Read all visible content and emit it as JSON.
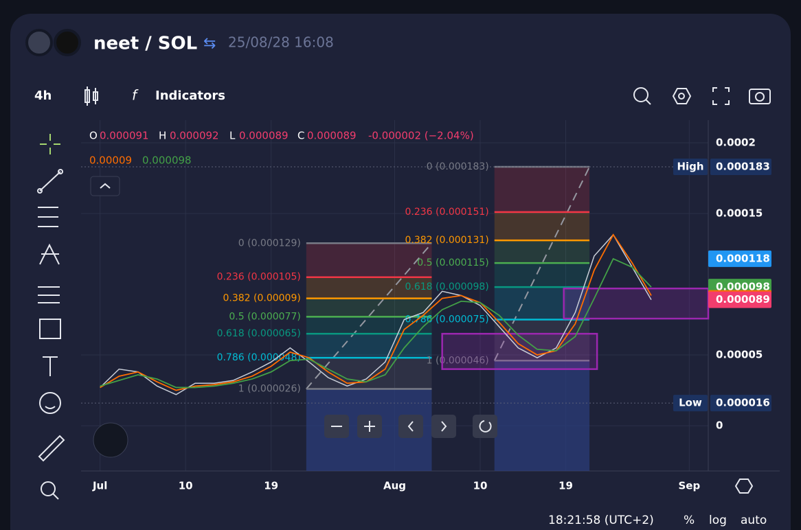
{
  "header": {
    "pair": "neet / SOL",
    "timestamp": "25/08/28 16:08",
    "interval": "4h",
    "indicators": "Indicators"
  },
  "ohlc": {
    "o_label": "O",
    "o": "0.000091",
    "h_label": "H",
    "h": "0.000092",
    "l_label": "L",
    "l": "0.000089",
    "c_label": "C",
    "c": "0.000089",
    "change": "-0.000002 (−2.04%)",
    "ma1": "0.00009",
    "ma2": "0.000098"
  },
  "footer": {
    "time": "18:21:58 (UTC+2)",
    "percent": "%",
    "log": "log",
    "auto": "auto"
  },
  "chart_data": {
    "type": "line",
    "x": [
      0,
      2,
      4,
      6,
      8,
      10,
      12,
      14,
      16,
      18,
      20,
      22,
      24,
      26,
      28,
      30,
      32,
      34,
      36,
      38,
      40,
      42,
      44,
      46,
      48,
      50,
      52,
      54,
      56,
      58
    ],
    "series": [
      {
        "color": "#c9ced8",
        "values": [
          2.7e-05,
          4e-05,
          3.8e-05,
          2.8e-05,
          2.2e-05,
          3e-05,
          3e-05,
          3.2e-05,
          3.8e-05,
          4.5e-05,
          5.5e-05,
          4.5e-05,
          3.4e-05,
          2.8e-05,
          3.3e-05,
          4.5e-05,
          7.5e-05,
          8e-05,
          9.5e-05,
          9.2e-05,
          8.5e-05,
          7e-05,
          5.5e-05,
          4.8e-05,
          5.5e-05,
          8e-05,
          0.00012,
          0.000135,
          0.000112,
          8.9e-05
        ]
      },
      {
        "color": "#ff6d00",
        "values": [
          2.7e-05,
          3.5e-05,
          3.8e-05,
          3.1e-05,
          2.5e-05,
          2.8e-05,
          2.9e-05,
          3.1e-05,
          3.5e-05,
          4.2e-05,
          5.2e-05,
          4.8e-05,
          3.8e-05,
          3e-05,
          3.1e-05,
          4e-05,
          6.8e-05,
          7.8e-05,
          9e-05,
          9.2e-05,
          8.7e-05,
          7.3e-05,
          5.8e-05,
          5e-05,
          5.3e-05,
          7.2e-05,
          0.00011,
          0.000135,
          0.000115,
          9.2e-05
        ]
      },
      {
        "color": "#43a047",
        "values": [
          2.8e-05,
          3.2e-05,
          3.6e-05,
          3.3e-05,
          2.7e-05,
          2.7e-05,
          2.8e-05,
          3e-05,
          3.3e-05,
          3.8e-05,
          4.6e-05,
          4.7e-05,
          4e-05,
          3.3e-05,
          3.1e-05,
          3.6e-05,
          5.5e-05,
          7e-05,
          8.2e-05,
          8.8e-05,
          8.7e-05,
          7.8e-05,
          6.4e-05,
          5.4e-05,
          5.3e-05,
          6.3e-05,
          9e-05,
          0.000118,
          0.000112,
          9.8e-05
        ]
      }
    ],
    "xlim": [
      -2,
      64
    ],
    "xticks": [
      {
        "value": 0,
        "label": "Jul"
      },
      {
        "value": 9,
        "label": "10"
      },
      {
        "value": 18,
        "label": "19"
      },
      {
        "value": 31,
        "label": "Aug"
      },
      {
        "value": 40,
        "label": "10"
      },
      {
        "value": 49,
        "label": "19"
      },
      {
        "value": 62,
        "label": "Sep"
      }
    ],
    "ylim": [
      -3.2e-05,
      0.000216
    ],
    "yticks": [
      0,
      5e-05,
      0.00015,
      0.0002
    ],
    "grid": true,
    "high": {
      "label": "High",
      "value": 0.000183
    },
    "low": {
      "label": "Low",
      "value": 1.6e-05
    },
    "price_tags": [
      {
        "value": 0.000118,
        "color": "#2196f3"
      },
      {
        "value": 9.8e-05,
        "color": "#43a047"
      },
      {
        "value": 9e-05,
        "color": "#ff6d00"
      },
      {
        "value": 8.9e-05,
        "color": "#f23d6d"
      }
    ],
    "fibs": [
      {
        "x": [
          21.7,
          34.9
        ],
        "levels": [
          {
            "value": 0.000129,
            "label": "0 (0.000129)",
            "color": "#787b86"
          },
          {
            "value": 0.000105,
            "label": "0.236 (0.000105)",
            "color": "#f23645"
          },
          {
            "value": 9e-05,
            "label": "0.382 (0.00009)",
            "color": "#ff9800"
          },
          {
            "value": 7.7e-05,
            "label": "0.5 (0.000077)",
            "color": "#4caf50"
          },
          {
            "value": 6.5e-05,
            "label": "0.618 (0.000065)",
            "color": "#089981"
          },
          {
            "value": 4.8e-05,
            "label": "0.786 (0.000048)",
            "color": "#00bcd4"
          },
          {
            "value": 2.6e-05,
            "label": "1 (0.000026)",
            "color": "#787b86"
          }
        ]
      },
      {
        "x": [
          41.5,
          51.5
        ],
        "levels": [
          {
            "value": 0.000183,
            "label": "0 (0.000183)",
            "color": "#787b86"
          },
          {
            "value": 0.000151,
            "label": "0.236 (0.000151)",
            "color": "#f23645"
          },
          {
            "value": 0.000131,
            "label": "0.382 (0.000131)",
            "color": "#ff9800"
          },
          {
            "value": 0.000115,
            "label": "0.5 (0.000115)",
            "color": "#4caf50"
          },
          {
            "value": 9.8e-05,
            "label": "0.618 (0.000098)",
            "color": "#089981"
          },
          {
            "value": 7.5e-05,
            "label": "0.786 (0.000075)",
            "color": "#00bcd4"
          },
          {
            "value": 4.6e-05,
            "label": "1 (0.000046)",
            "color": "#787b86"
          }
        ]
      }
    ],
    "boxes": [
      {
        "x": [
          36,
          52.3
        ],
        "y": [
          4e-05,
          6.5e-05
        ]
      },
      {
        "x": [
          48.8,
          64
        ],
        "y": [
          7.57e-05,
          9.7e-05
        ]
      }
    ]
  }
}
